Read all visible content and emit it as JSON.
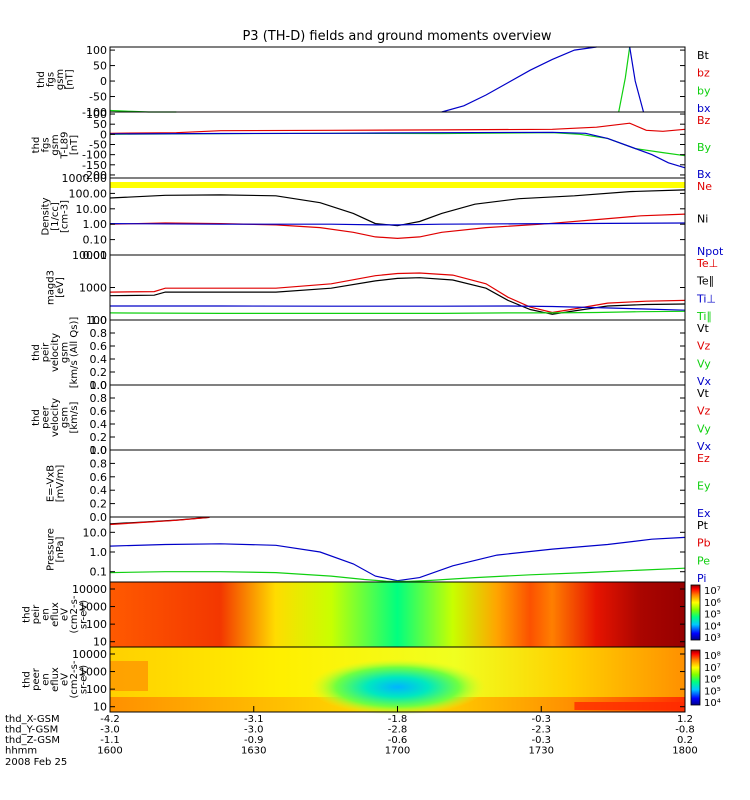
{
  "title": "P3 (TH-D) fields and ground moments overview",
  "colors": {
    "black": "#000000",
    "red": "#e00000",
    "green": "#10d010",
    "blue": "#0000c8",
    "yellow": "#ffff00"
  },
  "footer": {
    "rows": [
      {
        "label": "thd_X-GSM",
        "values": [
          "-4.2",
          "-3.1",
          "-1.8",
          "-0.3",
          "1.2"
        ]
      },
      {
        "label": "thd_Y-GSM",
        "values": [
          "-3.0",
          "-3.0",
          "-2.8",
          "-2.3",
          "-0.8"
        ]
      },
      {
        "label": "thd_Z-GSM",
        "values": [
          "-1.1",
          "-0.9",
          "-0.6",
          "-0.3",
          "0.2"
        ]
      },
      {
        "label": "hhmm",
        "values": [
          "1600",
          "1630",
          "1700",
          "1730",
          "1800"
        ]
      }
    ],
    "date": "2008 Feb 25"
  },
  "chart_data": [
    {
      "type": "line",
      "ylabel": [
        "thd",
        "fgs",
        "gsm",
        "[nT]"
      ],
      "yticks": [
        "100",
        "50",
        "0",
        "-50",
        "-100"
      ],
      "ylim": [
        -100,
        110
      ],
      "legend": [
        {
          "name": "Bt",
          "color": "black"
        },
        {
          "name": "bz",
          "color": "red"
        },
        {
          "name": "by",
          "color": "green"
        },
        {
          "name": "bx",
          "color": "blue"
        }
      ],
      "x": [
        0,
        7,
        12,
        60,
        68,
        82,
        92,
        96,
        104
      ],
      "series": [
        {
          "name": "by",
          "color": "green",
          "x": [
            0,
            4,
            7,
            12
          ],
          "values": [
            -95,
            -98,
            -105,
            -110
          ]
        },
        {
          "name": "bx",
          "color": "blue",
          "x": [
            60,
            64,
            68,
            72,
            76,
            80,
            84,
            88
          ],
          "values": [
            -110,
            -80,
            -45,
            -5,
            35,
            70,
            100,
            125
          ]
        },
        {
          "name": "by",
          "color": "green",
          "x": [
            92,
            93.2,
            94
          ],
          "values": [
            -110,
            10,
            130
          ]
        },
        {
          "name": "bx",
          "color": "blue",
          "x": [
            94,
            95,
            96.5
          ],
          "values": [
            130,
            0,
            -110
          ]
        }
      ]
    },
    {
      "type": "line",
      "ylabel": [
        "thd",
        "fgs",
        "gsm",
        "T-L89",
        "[nT]"
      ],
      "yticks": [
        "100",
        "50",
        "0",
        "-50",
        "-100",
        "-150",
        "-200"
      ],
      "ylim": [
        -215,
        110
      ],
      "legend": [
        {
          "name": "Bz",
          "color": "red"
        },
        {
          "name": "By",
          "color": "green"
        },
        {
          "name": "Bx",
          "color": "blue"
        }
      ],
      "series": [
        {
          "name": "Bz",
          "color": "red",
          "x": [
            0,
            12,
            20,
            40,
            60,
            80,
            88,
            94,
            97,
            100,
            104
          ],
          "values": [
            5,
            8,
            18,
            20,
            22,
            25,
            35,
            55,
            20,
            15,
            25
          ]
        },
        {
          "name": "By",
          "color": "green",
          "x": [
            0,
            20,
            40,
            60,
            80,
            85,
            90,
            95,
            100,
            104
          ],
          "values": [
            0,
            3,
            5,
            4,
            8,
            0,
            -20,
            -70,
            -90,
            -105
          ]
        },
        {
          "name": "Bx",
          "color": "blue",
          "x": [
            0,
            20,
            40,
            60,
            80,
            86,
            90,
            94,
            98,
            101,
            104
          ],
          "values": [
            2,
            4,
            5,
            8,
            10,
            5,
            -20,
            -60,
            -100,
            -140,
            -165
          ]
        }
      ]
    },
    {
      "type": "line",
      "ylabel": [
        "Density",
        "[1/cc]",
        "[cm-3]"
      ],
      "yticks": [
        "1000.00",
        "100.00",
        "10.00",
        "1.00",
        "0.10",
        "0.01"
      ],
      "ylim": [
        0.01,
        1000
      ],
      "scale": "log",
      "legend": [
        {
          "name": "Ne",
          "color": "red"
        },
        {
          "name": "Ni",
          "color": "black"
        },
        {
          "name": "Npot",
          "color": "blue"
        }
      ],
      "series": [
        {
          "name": "Ni",
          "color": "black",
          "x": [
            0,
            10,
            20,
            30,
            38,
            44,
            48,
            52,
            56,
            60,
            66,
            74,
            84,
            94,
            104
          ],
          "values": [
            50,
            75,
            80,
            70,
            25,
            5,
            1.1,
            0.8,
            1.5,
            5,
            20,
            45,
            70,
            130,
            170
          ]
        },
        {
          "name": "Ne",
          "color": "red",
          "x": [
            0,
            10,
            20,
            30,
            38,
            44,
            48,
            52,
            56,
            60,
            68,
            78,
            88,
            96,
            104
          ],
          "values": [
            1.0,
            1.2,
            1.1,
            0.9,
            0.6,
            0.3,
            0.15,
            0.12,
            0.15,
            0.3,
            0.6,
            1.0,
            2.0,
            3.5,
            4.5
          ]
        },
        {
          "name": "Npot",
          "color": "blue",
          "x": [
            0,
            20,
            40,
            48,
            52,
            60,
            80,
            104
          ],
          "values": [
            1.1,
            1.0,
            1.0,
            0.9,
            0.9,
            1.0,
            1.1,
            1.2
          ]
        }
      ]
    },
    {
      "type": "line",
      "ylabel": [
        "magd3",
        "[eV]"
      ],
      "yticks": [
        "10000",
        "1000",
        "100"
      ],
      "ylim": [
        100,
        10000
      ],
      "scale": "log",
      "legend": [
        {
          "name": "Te⊥",
          "color": "red"
        },
        {
          "name": "Te∥",
          "color": "black"
        },
        {
          "name": "Ti⊥",
          "color": "blue"
        },
        {
          "name": "Ti∥",
          "color": "green"
        }
      ],
      "series": [
        {
          "name": "Te⊥",
          "color": "red",
          "x": [
            0,
            8,
            10,
            30,
            40,
            48,
            52,
            56,
            62,
            68,
            72,
            76,
            80,
            84,
            90,
            97,
            104
          ],
          "values": [
            720,
            750,
            950,
            950,
            1300,
            2300,
            2700,
            2800,
            2400,
            1300,
            500,
            250,
            170,
            220,
            330,
            380,
            400
          ]
        },
        {
          "name": "Te∥",
          "color": "black",
          "x": [
            0,
            8,
            10,
            30,
            40,
            48,
            52,
            56,
            62,
            68,
            72,
            76,
            80,
            84,
            90,
            97,
            104
          ],
          "values": [
            560,
            580,
            720,
            720,
            950,
            1600,
            1900,
            2000,
            1700,
            950,
            400,
            210,
            150,
            190,
            270,
            300,
            310
          ]
        },
        {
          "name": "Ti⊥",
          "color": "blue",
          "x": [
            0,
            20,
            40,
            60,
            72,
            80,
            88,
            96,
            104
          ],
          "values": [
            270,
            270,
            265,
            265,
            270,
            260,
            240,
            220,
            200
          ]
        },
        {
          "name": "Ti∥",
          "color": "green",
          "x": [
            0,
            20,
            40,
            60,
            72,
            80,
            88,
            96,
            104
          ],
          "values": [
            165,
            160,
            160,
            160,
            165,
            165,
            170,
            180,
            185
          ]
        }
      ]
    },
    {
      "type": "line",
      "ylabel": [
        "thd",
        "peir",
        "velocity",
        "gsm",
        "[km/s (All Qs)]"
      ],
      "yticks": [
        "1.0",
        "0.8",
        "0.6",
        "0.4",
        "0.2",
        "0.0"
      ],
      "ylim": [
        0,
        1
      ],
      "legend": [
        {
          "name": "Vt",
          "color": "black"
        },
        {
          "name": "Vz",
          "color": "red"
        },
        {
          "name": "Vy",
          "color": "green"
        },
        {
          "name": "Vx",
          "color": "blue"
        }
      ],
      "series": []
    },
    {
      "type": "line",
      "ylabel": [
        "thd",
        "peer",
        "velocity",
        "gsm",
        "[km/s]"
      ],
      "yticks": [
        "1.0",
        "0.8",
        "0.6",
        "0.4",
        "0.2",
        "0.0"
      ],
      "ylim": [
        0,
        1
      ],
      "legend": [
        {
          "name": "Vt",
          "color": "black"
        },
        {
          "name": "Vz",
          "color": "red"
        },
        {
          "name": "Vy",
          "color": "green"
        },
        {
          "name": "Vx",
          "color": "blue"
        }
      ],
      "series": []
    },
    {
      "type": "line",
      "ylabel": [
        "E=-VxB",
        "[mV/m]"
      ],
      "yticks": [
        "1.0",
        "0.8",
        "0.6",
        "0.4",
        "0.2",
        "0.0"
      ],
      "ylim": [
        0,
        1
      ],
      "legend": [
        {
          "name": "Ez",
          "color": "red"
        },
        {
          "name": "Ey",
          "color": "green"
        },
        {
          "name": "Ex",
          "color": "blue"
        }
      ],
      "series": []
    },
    {
      "type": "line",
      "ylabel": [
        "Pressure",
        "[nPa]"
      ],
      "yticks": [
        "10.0",
        "1.0",
        "0.1"
      ],
      "ylim": [
        0.03,
        60
      ],
      "scale": "log",
      "legend": [
        {
          "name": "Pt",
          "color": "black"
        },
        {
          "name": "Pb",
          "color": "red"
        },
        {
          "name": "Pe",
          "color": "green"
        },
        {
          "name": "Pi",
          "color": "blue"
        }
      ],
      "series": [
        {
          "name": "Pt",
          "color": "black",
          "x": [
            0,
            6,
            12,
            18
          ],
          "values": [
            27,
            33,
            42,
            58
          ]
        },
        {
          "name": "Pb",
          "color": "red",
          "x": [
            0,
            6,
            12,
            18
          ],
          "values": [
            25,
            32,
            41,
            57
          ]
        },
        {
          "name": "Pi",
          "color": "blue",
          "x": [
            0,
            10,
            20,
            30,
            38,
            44,
            48,
            52,
            56,
            62,
            70,
            80,
            90,
            98,
            104
          ],
          "values": [
            2.0,
            2.4,
            2.6,
            2.2,
            1.0,
            0.25,
            0.06,
            0.035,
            0.05,
            0.2,
            0.7,
            1.4,
            2.4,
            4.5,
            5.5
          ]
        },
        {
          "name": "Pe",
          "color": "green",
          "x": [
            0,
            10,
            20,
            30,
            40,
            46,
            50,
            54,
            58,
            66,
            76,
            86,
            96,
            104
          ],
          "values": [
            0.09,
            0.1,
            0.1,
            0.09,
            0.06,
            0.04,
            0.033,
            0.032,
            0.036,
            0.05,
            0.07,
            0.09,
            0.12,
            0.15
          ]
        }
      ]
    },
    {
      "type": "heatmap",
      "ylabel": [
        "thd",
        "peir",
        "en",
        "eflux",
        "eV",
        "(cm2-s-",
        "sr-eV)"
      ],
      "yticks": [
        "10000",
        "1000",
        "100",
        "10"
      ],
      "ylim": [
        5,
        25000
      ],
      "scale": "log",
      "colorbar": {
        "ticks": [
          "10⁷",
          "10⁶",
          "10⁵",
          "10⁴",
          "10³"
        ]
      },
      "x": [
        0,
        20,
        30,
        40,
        52,
        62,
        70,
        76,
        80,
        88,
        96,
        104
      ],
      "values": [
        0.82,
        0.86,
        0.75,
        0.6,
        0.45,
        0.6,
        0.78,
        0.83,
        0.8,
        0.9,
        0.96,
        0.98
      ]
    },
    {
      "type": "heatmap",
      "ylabel": [
        "thd",
        "peer",
        "en",
        "eflux",
        "eV",
        "(cm2-s-",
        "sr-eV)"
      ],
      "yticks": [
        "10000",
        "1000",
        "100",
        "10"
      ],
      "ylim": [
        5,
        25000
      ],
      "scale": "log",
      "colorbar": {
        "ticks": [
          "10⁸",
          "10⁷",
          "10⁶",
          "10⁵",
          "10⁴"
        ]
      }
    }
  ]
}
